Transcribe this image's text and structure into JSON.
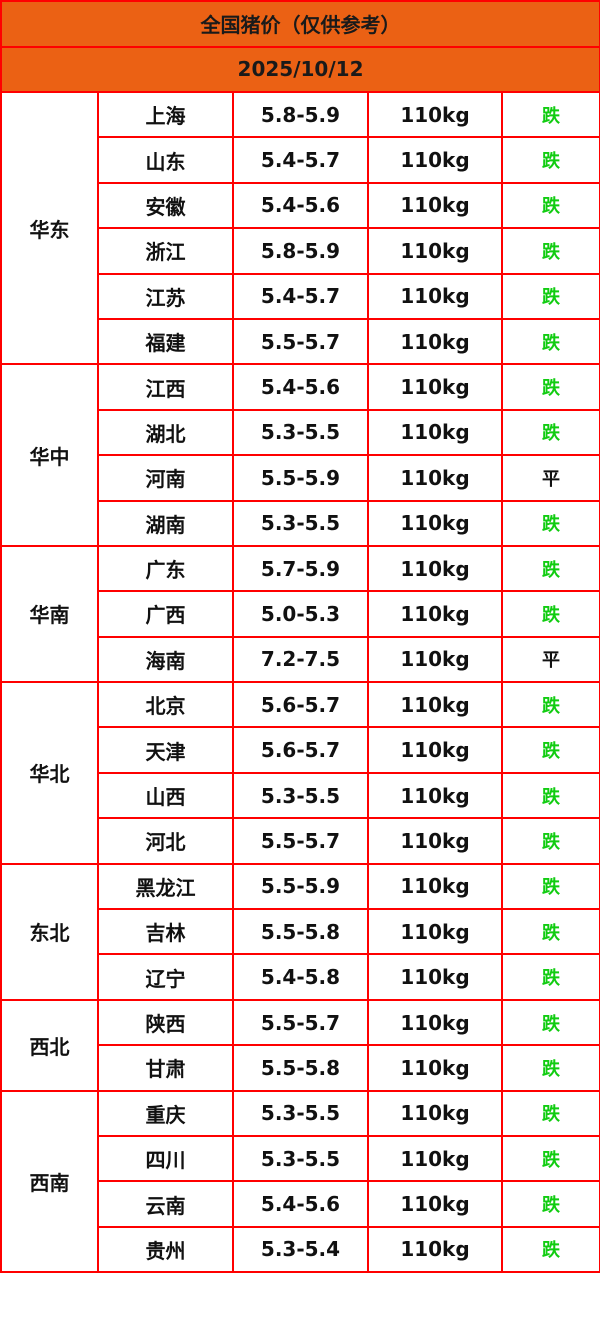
{
  "title": "全国猪价（仅供参考）",
  "date": "2025/10/12",
  "colors": {
    "header_bg": "#eb6114",
    "border": "#ff0000",
    "fall": "#11cc11",
    "flat": "#111111"
  },
  "regions": [
    {
      "name": "华东",
      "rows": [
        {
          "province": "上海",
          "price": "5.8-5.9",
          "weight": "110kg",
          "trend": "跌"
        },
        {
          "province": "山东",
          "price": "5.4-5.7",
          "weight": "110kg",
          "trend": "跌"
        },
        {
          "province": "安徽",
          "price": "5.4-5.6",
          "weight": "110kg",
          "trend": "跌"
        },
        {
          "province": "浙江",
          "price": "5.8-5.9",
          "weight": "110kg",
          "trend": "跌"
        },
        {
          "province": "江苏",
          "price": "5.4-5.7",
          "weight": "110kg",
          "trend": "跌"
        },
        {
          "province": "福建",
          "price": "5.5-5.7",
          "weight": "110kg",
          "trend": "跌"
        }
      ]
    },
    {
      "name": "华中",
      "rows": [
        {
          "province": "江西",
          "price": "5.4-5.6",
          "weight": "110kg",
          "trend": "跌"
        },
        {
          "province": "湖北",
          "price": "5.3-5.5",
          "weight": "110kg",
          "trend": "跌"
        },
        {
          "province": "河南",
          "price": "5.5-5.9",
          "weight": "110kg",
          "trend": "平"
        },
        {
          "province": "湖南",
          "price": "5.3-5.5",
          "weight": "110kg",
          "trend": "跌"
        }
      ]
    },
    {
      "name": "华南",
      "rows": [
        {
          "province": "广东",
          "price": "5.7-5.9",
          "weight": "110kg",
          "trend": "跌"
        },
        {
          "province": "广西",
          "price": "5.0-5.3",
          "weight": "110kg",
          "trend": "跌"
        },
        {
          "province": "海南",
          "price": "7.2-7.5",
          "weight": "110kg",
          "trend": "平"
        }
      ]
    },
    {
      "name": "华北",
      "rows": [
        {
          "province": "北京",
          "price": "5.6-5.7",
          "weight": "110kg",
          "trend": "跌"
        },
        {
          "province": "天津",
          "price": "5.6-5.7",
          "weight": "110kg",
          "trend": "跌"
        },
        {
          "province": "山西",
          "price": "5.3-5.5",
          "weight": "110kg",
          "trend": "跌"
        },
        {
          "province": "河北",
          "price": "5.5-5.7",
          "weight": "110kg",
          "trend": "跌"
        }
      ]
    },
    {
      "name": "东北",
      "rows": [
        {
          "province": "黑龙江",
          "price": "5.5-5.9",
          "weight": "110kg",
          "trend": "跌"
        },
        {
          "province": "吉林",
          "price": "5.5-5.8",
          "weight": "110kg",
          "trend": "跌"
        },
        {
          "province": "辽宁",
          "price": "5.4-5.8",
          "weight": "110kg",
          "trend": "跌"
        }
      ]
    },
    {
      "name": "西北",
      "rows": [
        {
          "province": "陕西",
          "price": "5.5-5.7",
          "weight": "110kg",
          "trend": "跌"
        },
        {
          "province": "甘肃",
          "price": "5.5-5.8",
          "weight": "110kg",
          "trend": "跌"
        }
      ]
    },
    {
      "name": "西南",
      "rows": [
        {
          "province": "重庆",
          "price": "5.3-5.5",
          "weight": "110kg",
          "trend": "跌"
        },
        {
          "province": "四川",
          "price": "5.3-5.5",
          "weight": "110kg",
          "trend": "跌"
        },
        {
          "province": "云南",
          "price": "5.4-5.6",
          "weight": "110kg",
          "trend": "跌"
        },
        {
          "province": "贵州",
          "price": "5.3-5.4",
          "weight": "110kg",
          "trend": "跌"
        }
      ]
    }
  ]
}
